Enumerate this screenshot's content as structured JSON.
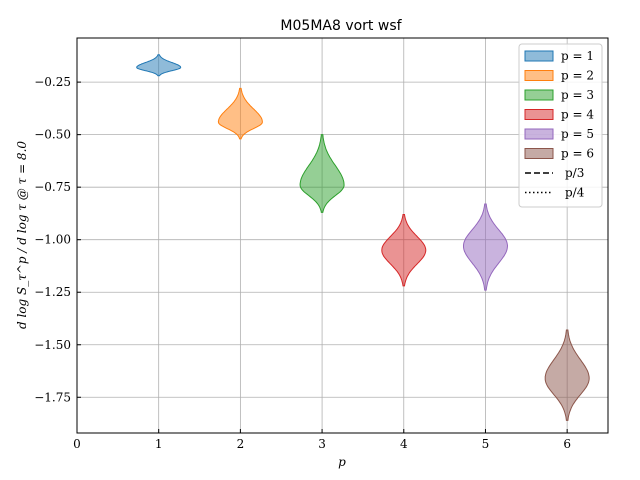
{
  "chart_data": {
    "type": "violin",
    "title": "M05MA8 vort wsf",
    "xlabel": "p",
    "ylabel": "d log S_τ^p / d log τ @ τ = 8.0",
    "xlim": [
      0,
      6.5
    ],
    "ylim": [
      -1.92,
      -0.04
    ],
    "xticks": [
      "0",
      "1",
      "2",
      "3",
      "4",
      "5",
      "6"
    ],
    "yticks": [
      "−0.25",
      "−0.50",
      "−0.75",
      "−1.00",
      "−1.25",
      "−1.50",
      "−1.75"
    ],
    "yticks_values": [
      -0.25,
      -0.5,
      -0.75,
      -1.0,
      -1.25,
      -1.5,
      -1.75
    ],
    "grid": true,
    "legend_position": "top-right",
    "series": [
      {
        "name": "p = 1",
        "x": 1,
        "center": -0.18,
        "min": -0.22,
        "max": -0.12,
        "color": "#1f77b4"
      },
      {
        "name": "p = 2",
        "x": 2,
        "center": -0.44,
        "min": -0.52,
        "max": -0.28,
        "color": "#ff7f0e"
      },
      {
        "name": "p = 3",
        "x": 3,
        "center": -0.74,
        "min": -0.87,
        "max": -0.5,
        "color": "#2ca02c"
      },
      {
        "name": "p = 4",
        "x": 4,
        "center": -1.05,
        "min": -1.22,
        "max": -0.88,
        "color": "#d62728"
      },
      {
        "name": "p = 5",
        "x": 5,
        "center": -1.03,
        "min": -1.24,
        "max": -0.83,
        "color": "#9467bd"
      },
      {
        "name": "p = 6",
        "x": 6,
        "center": -1.66,
        "min": -1.86,
        "max": -1.43,
        "color": "#8c564b"
      }
    ],
    "legend_extra": [
      {
        "name": "p/3",
        "style": "dashed"
      },
      {
        "name": "p/4",
        "style": "dotted"
      }
    ]
  }
}
